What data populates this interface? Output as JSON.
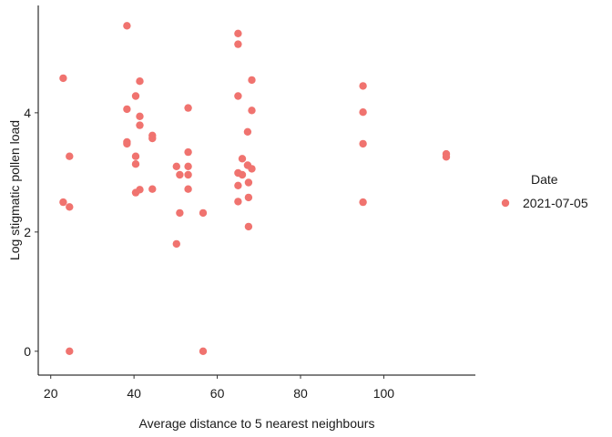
{
  "chart_data": {
    "type": "scatter",
    "title": "",
    "xlabel": "Average distance to 5 nearest neighbours",
    "ylabel": "Log stigmatic pollen load",
    "xlim": [
      17,
      122
    ],
    "ylim": [
      -0.4,
      5.8
    ],
    "xticks": [
      20,
      40,
      60,
      80,
      100
    ],
    "yticks": [
      0,
      2,
      4
    ],
    "grid": false,
    "legend": {
      "title": "Date",
      "position": "right"
    },
    "series": [
      {
        "name": "2021-07-05",
        "color": "#f0736f",
        "points": [
          [
            23,
            4.58
          ],
          [
            23,
            2.5
          ],
          [
            24.5,
            3.27
          ],
          [
            24.5,
            2.42
          ],
          [
            24.5,
            0
          ],
          [
            38.3,
            5.46
          ],
          [
            38.3,
            4.06
          ],
          [
            38.3,
            3.51
          ],
          [
            38.3,
            3.48
          ],
          [
            40.4,
            4.28
          ],
          [
            40.4,
            3.27
          ],
          [
            40.4,
            3.14
          ],
          [
            40.4,
            2.66
          ],
          [
            41.4,
            4.53
          ],
          [
            41.4,
            3.94
          ],
          [
            41.4,
            3.79
          ],
          [
            41.4,
            2.71
          ],
          [
            44.4,
            3.62
          ],
          [
            44.4,
            3.57
          ],
          [
            44.4,
            2.72
          ],
          [
            50.2,
            3.1
          ],
          [
            50.2,
            1.8
          ],
          [
            51,
            2.96
          ],
          [
            51,
            2.32
          ],
          [
            53,
            4.08
          ],
          [
            53,
            3.34
          ],
          [
            53,
            3.1
          ],
          [
            53,
            2.96
          ],
          [
            53,
            2.72
          ],
          [
            56.6,
            2.32
          ],
          [
            56.6,
            0
          ],
          [
            65,
            5.33
          ],
          [
            65,
            5.15
          ],
          [
            65,
            4.28
          ],
          [
            65,
            2.99
          ],
          [
            65,
            2.78
          ],
          [
            65,
            2.51
          ],
          [
            66,
            3.23
          ],
          [
            66,
            2.96
          ],
          [
            67.3,
            3.68
          ],
          [
            67.3,
            3.12
          ],
          [
            67.5,
            2.83
          ],
          [
            67.5,
            2.58
          ],
          [
            67.5,
            2.09
          ],
          [
            68.3,
            4.55
          ],
          [
            68.3,
            4.04
          ],
          [
            68.3,
            3.06
          ],
          [
            95,
            4.45
          ],
          [
            95,
            4.01
          ],
          [
            95,
            3.48
          ],
          [
            95,
            2.5
          ],
          [
            115,
            3.31
          ],
          [
            115,
            3.26
          ]
        ]
      }
    ]
  }
}
